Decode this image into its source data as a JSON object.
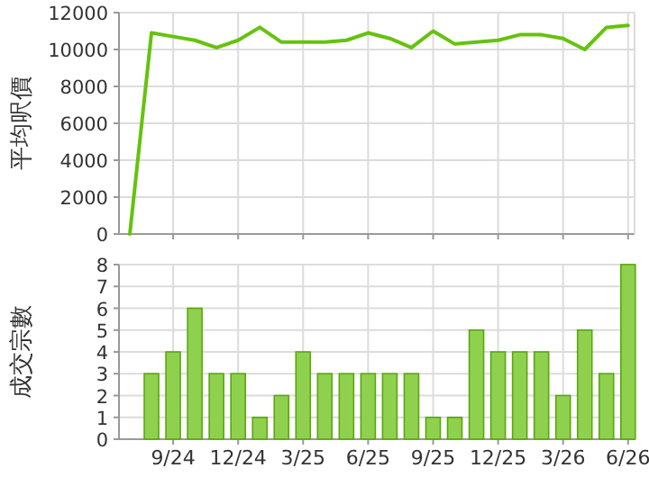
{
  "chart_data": [
    {
      "type": "line",
      "ylabel": "平均呎價",
      "x": [
        "2024-07",
        "2024-08",
        "2024-09",
        "2024-10",
        "2024-11",
        "2024-12",
        "2025-01",
        "2025-02",
        "2025-03",
        "2025-04",
        "2025-05",
        "2025-06",
        "2025-07",
        "2025-08",
        "2025-09",
        "2025-10",
        "2025-11",
        "2025-12",
        "2026-01",
        "2026-02",
        "2026-03",
        "2026-04",
        "2026-05",
        "2026-06"
      ],
      "series": [
        {
          "color": "#66c20e",
          "values": [
            0,
            10900,
            10700,
            10500,
            10100,
            10500,
            11200,
            10400,
            10400,
            10400,
            10500,
            10900,
            10600,
            10100,
            11000,
            10300,
            10400,
            10500,
            10800,
            10800,
            10600,
            10000,
            11200,
            11300
          ]
        }
      ],
      "xlim": [
        "2024-06-16",
        "2026-06-10"
      ],
      "ylim": [
        0,
        12000
      ],
      "yticks": [
        0,
        2000,
        4000,
        6000,
        8000,
        10000,
        12000
      ],
      "xticks": [
        {
          "value": "2024-09",
          "label": null
        },
        {
          "value": "2024-12",
          "label": null
        },
        {
          "value": "2025-03",
          "label": null
        },
        {
          "value": "2025-06",
          "label": null
        },
        {
          "value": "2025-09",
          "label": null
        },
        {
          "value": "2025-12",
          "label": null
        },
        {
          "value": "2026-03",
          "label": null
        },
        {
          "value": "2026-06",
          "label": null
        }
      ],
      "grid": true,
      "tick_labels": "y"
    },
    {
      "type": "bar",
      "ylabel": "成交宗數",
      "x": [
        "2024-08",
        "2024-09",
        "2024-10",
        "2024-11",
        "2024-12",
        "2025-01",
        "2025-02",
        "2025-03",
        "2025-04",
        "2025-05",
        "2025-06",
        "2025-07",
        "2025-08",
        "2025-09",
        "2025-10",
        "2025-11",
        "2025-12",
        "2026-01",
        "2026-02",
        "2026-03",
        "2026-04",
        "2026-05",
        "2026-06"
      ],
      "series": [
        {
          "color": "#8fd14f",
          "values": [
            3,
            4,
            6,
            3,
            3,
            1,
            2,
            4,
            3,
            3,
            3,
            3,
            3,
            1,
            1,
            5,
            4,
            4,
            4,
            2,
            5,
            3,
            8
          ]
        }
      ],
      "xlim": [
        "2024-06-16",
        "2026-06-10"
      ],
      "ylim": [
        0,
        8
      ],
      "yticks": [
        0,
        1,
        2,
        3,
        4,
        5,
        6,
        7,
        8
      ],
      "xticks": [
        {
          "value": "2024-09",
          "label": "9/24"
        },
        {
          "value": "2024-12",
          "label": "12/24"
        },
        {
          "value": "2025-03",
          "label": "3/25"
        },
        {
          "value": "2025-06",
          "label": "6/25"
        },
        {
          "value": "2025-09",
          "label": "9/25"
        },
        {
          "value": "2025-12",
          "label": "12/25"
        },
        {
          "value": "2026-03",
          "label": "3/26"
        },
        {
          "value": "2026-06",
          "label": "6/26"
        }
      ],
      "grid": true
    }
  ]
}
